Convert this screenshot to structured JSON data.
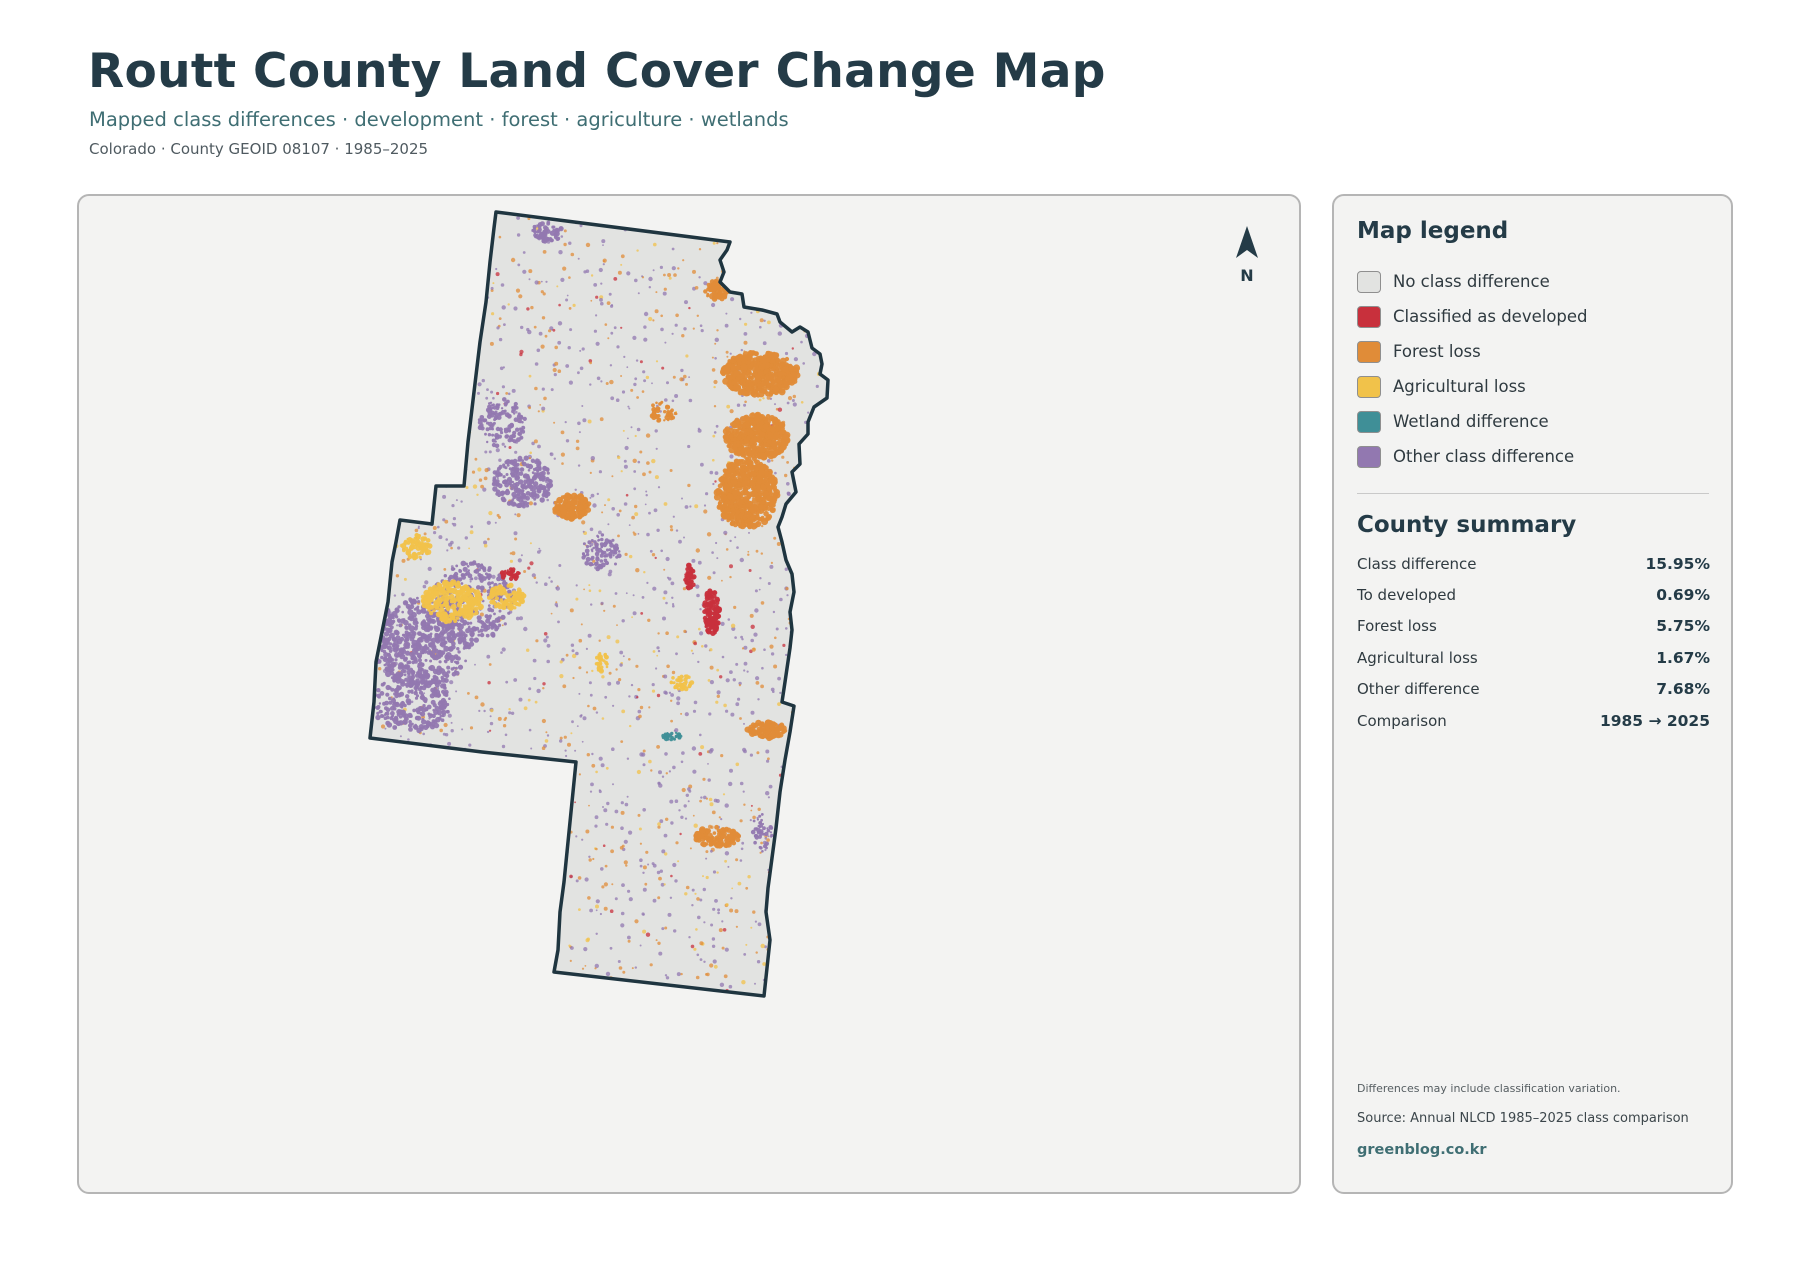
{
  "header": {
    "title": "Routt County Land Cover Change Map",
    "subtitle": "Mapped class differences · development · forest · agriculture · wetlands",
    "meta": "Colorado · County GEOID 08107 · 1985–2025"
  },
  "map": {
    "north_label": "N",
    "north_icon": "north-arrow-icon",
    "colors": {
      "background": "#f3f3f2",
      "county_fill": "#e2e3e1",
      "county_outline": "#1f3540",
      "developed": "#c8303c",
      "forest_loss": "#e08c38",
      "agricultural_loss": "#f1c24a",
      "wetland": "#3f8f97",
      "other": "#9278b0"
    }
  },
  "legend": {
    "title": "Map legend",
    "items": [
      {
        "label": "No class difference",
        "color": "#e2e3e1"
      },
      {
        "label": "Classified as developed",
        "color": "#c8303c"
      },
      {
        "label": "Forest loss",
        "color": "#e08c38"
      },
      {
        "label": "Agricultural loss",
        "color": "#f1c24a"
      },
      {
        "label": "Wetland difference",
        "color": "#3f8f97"
      },
      {
        "label": "Other class difference",
        "color": "#9278b0"
      }
    ]
  },
  "summary": {
    "title": "County summary",
    "rows": [
      {
        "label": "Class difference",
        "value": "15.95%"
      },
      {
        "label": "To developed",
        "value": "0.69%"
      },
      {
        "label": "Forest loss",
        "value": "5.75%"
      },
      {
        "label": "Agricultural loss",
        "value": "1.67%"
      },
      {
        "label": "Other difference",
        "value": "7.68%"
      },
      {
        "label": "Comparison",
        "value": "1985 → 2025"
      }
    ]
  },
  "footer": {
    "note": "Differences may include classification variation.",
    "source": "Source: Annual NLCD 1985–2025 class comparison",
    "site": "greenblog.co.kr"
  }
}
